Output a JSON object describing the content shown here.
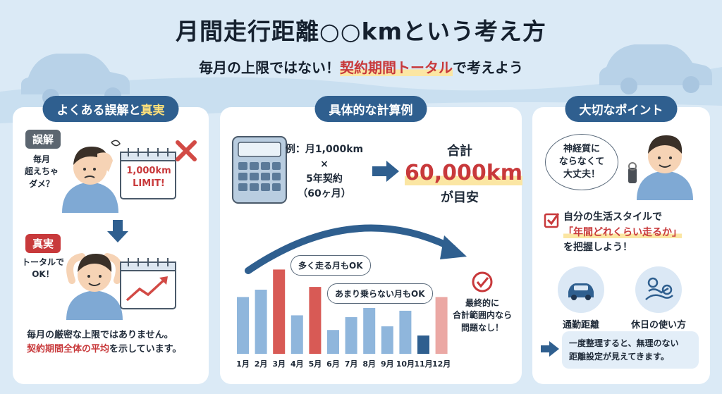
{
  "header": {
    "title": "月間走行距離○○kmという考え方",
    "subtitle_pre": "毎月の上限ではない！",
    "subtitle_highlight": "契約期間トータル",
    "subtitle_post": "で考えよう"
  },
  "left_panel": {
    "tag_pre": "よくある誤解と",
    "tag_highlight": "真実",
    "myth_badge": "誤解",
    "myth_thought": [
      "毎月",
      "超えちゃ",
      "ダメ？"
    ],
    "calendar_text": [
      "1,000km",
      "LIMIT!"
    ],
    "truth_badge": "真実",
    "truth_thought": [
      "トータルで",
      "OK！"
    ],
    "note_line1": "毎月の厳密な上限ではありません。",
    "note_line2_highlight": "契約期間全体の平均",
    "note_line2_post": "を示しています。"
  },
  "center_panel": {
    "tag": "具体的な計算例",
    "calc_lines": [
      "例：月1,000km",
      "×",
      "5年契約",
      "（60ヶ月）"
    ],
    "total_label": "合計",
    "total_value": "60,000km",
    "total_suffix": "が目安",
    "bubble_high": "多く走る月もOK",
    "bubble_low": "あまり乗らない月もOK",
    "final_lines": [
      "最終的に",
      "合計範囲内なら",
      "問題なし！"
    ]
  },
  "chart_data": {
    "type": "bar",
    "categories": [
      "1月",
      "2月",
      "3月",
      "4月",
      "5月",
      "6月",
      "7月",
      "8月",
      "9月",
      "10月",
      "11月",
      "12月"
    ],
    "values": [
      62,
      70,
      92,
      42,
      73,
      26,
      40,
      50,
      30,
      47,
      20,
      62
    ],
    "bar_colors": [
      "#8fb6dc",
      "#8fb6dc",
      "#d85a55",
      "#8fb6dc",
      "#d85a55",
      "#8fb6dc",
      "#8fb6dc",
      "#8fb6dc",
      "#8fb6dc",
      "#8fb6dc",
      "#2f5f8f",
      "#eba8a4"
    ],
    "ylim": [
      0,
      100
    ]
  },
  "right_panel": {
    "tag": "大切なポイント",
    "thought": [
      "神経質に",
      "ならなくて",
      "大丈夫！"
    ],
    "check_line1": "自分の生活スタイルで",
    "check_line2_highlight": "「年間どれくらい走るか」",
    "check_line3": "を把握しよう！",
    "icon1_label": "通勤距離",
    "icon2_label": "休日の使い方",
    "tip_line1": "一度整理すると、無理のない",
    "tip_line2": "距離設定が見えてきます。"
  },
  "colors": {
    "accent_red": "#c8393b",
    "navy": "#2f5f8f",
    "bar_blue": "#8fb6dc",
    "highlight_yellow": "#fbe6a3"
  }
}
